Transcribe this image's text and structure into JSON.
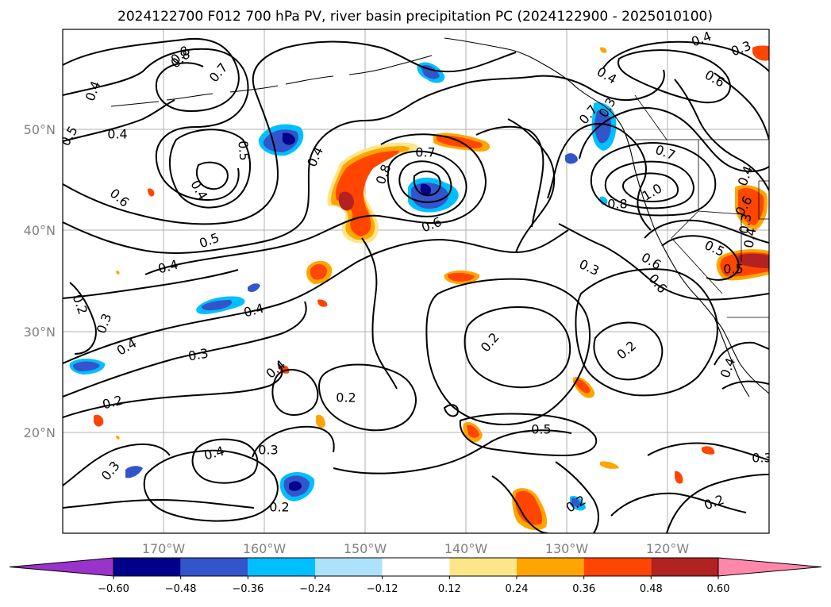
{
  "title": "2024122700 F012 700 hPa PV, river basin precipitation PC (2024122900 - 2025010100)",
  "map": {
    "lon_ticks": [
      "170°W",
      "160°W",
      "150°W",
      "140°W",
      "130°W",
      "120°W"
    ],
    "lat_ticks": [
      "50°N",
      "40°N",
      "30°N",
      "20°N"
    ],
    "contour_labels": [
      "0.8",
      "0.7",
      "0.4",
      "0.4",
      "0.5",
      "0.5",
      "0.4",
      "0.6",
      "0.4",
      "0.7",
      "0.8",
      "0.6",
      "0.5",
      "0.4",
      "0.2",
      "0.3",
      "0.4",
      "0.3",
      "0.4",
      "0.4",
      "0.2",
      "0.3",
      "0.2",
      "0.3",
      "0.4",
      "0.2",
      "0.2",
      "0.5",
      "0.2",
      "0.4",
      "0.7",
      "0.6",
      "0.8",
      "0.4",
      "0.3",
      "0.3",
      "1.0",
      "0.8",
      "0.7",
      "0.6",
      "0.5",
      "0.4",
      "0.6",
      "0.5",
      "0.4",
      "0.2",
      "0.3",
      "0.2",
      "0.4",
      "0.3",
      "0.6",
      "0.3"
    ]
  },
  "colorbar": {
    "ticks": [
      "−0.60",
      "−0.48",
      "−0.36",
      "−0.24",
      "−0.12",
      "0.12",
      "0.24",
      "0.36",
      "0.48",
      "0.60"
    ],
    "colors": [
      "#9933cc",
      "#00008b",
      "#3355cc",
      "#00bfff",
      "#aee2fa",
      "#ffffff",
      "#fde68a",
      "#ffa500",
      "#ff4500",
      "#b22222",
      "#ff88aa"
    ],
    "extend": "both"
  }
}
